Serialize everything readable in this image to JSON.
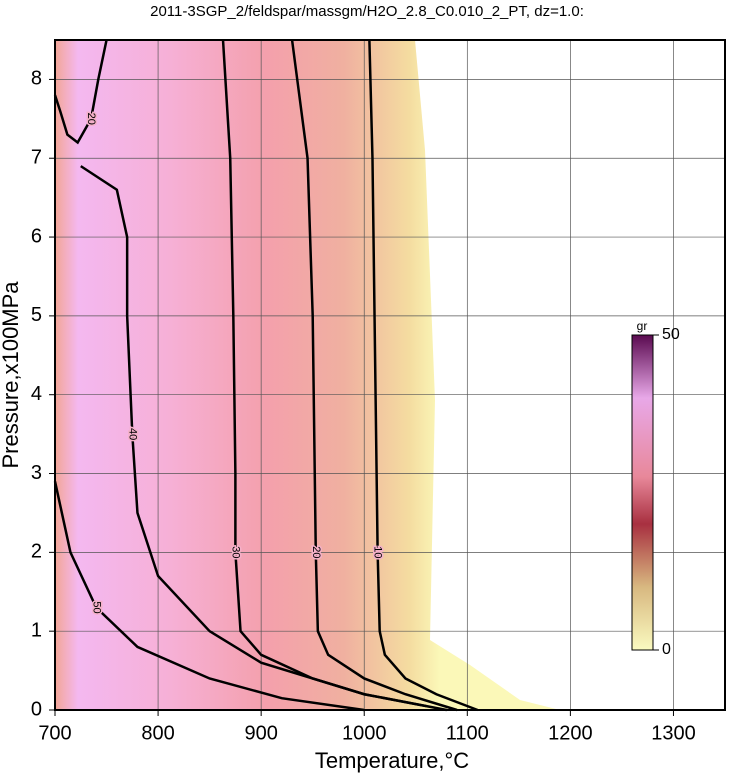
{
  "chart_data": {
    "type": "contour",
    "title": "2011-3SGP_2/feldspar/massgm/H2O_2.8_C0.010_2_PT, dz=1.0:",
    "x_label": "Temperature,°C",
    "y_label": "Pressure,x100MPa",
    "xlim": [
      700,
      1350
    ],
    "ylim": [
      0,
      8.5
    ],
    "xticks": [
      700,
      800,
      900,
      1000,
      1100,
      1200,
      1300
    ],
    "yticks": [
      0,
      1,
      2,
      3,
      4,
      5,
      6,
      7,
      8
    ],
    "grid": true,
    "contours": [
      {
        "level": 10,
        "x": [
          1005,
          1008,
          1010,
          1012,
          1013,
          1015,
          1020,
          1040,
          1070,
          1110
        ],
        "y": [
          8.5,
          7,
          5,
          3,
          2,
          1,
          0.7,
          0.4,
          0.2,
          0
        ]
      },
      {
        "level": 20,
        "x": [
          930,
          945,
          950,
          952,
          953,
          955,
          965,
          1000,
          1040,
          1090
        ],
        "y": [
          8.5,
          7,
          5,
          3,
          2,
          1,
          0.7,
          0.4,
          0.2,
          0
        ]
      },
      {
        "level": 30,
        "x": [
          863,
          870,
          873,
          875,
          875,
          880,
          900,
          950,
          1000,
          1060
        ],
        "y": [
          8.5,
          7,
          5,
          3,
          2,
          1,
          0.7,
          0.4,
          0.2,
          0.05
        ]
      },
      {
        "level": 40,
        "x": [
          725,
          760,
          770,
          770,
          775,
          780,
          800,
          850,
          900,
          1000,
          1080
        ],
        "y": [
          6.9,
          6.6,
          6,
          5,
          3.5,
          2.5,
          1.7,
          1,
          0.6,
          0.2,
          0
        ]
      },
      {
        "level": 50,
        "x": [
          700,
          715,
          740,
          780,
          850,
          920,
          1000
        ],
        "y": [
          2.9,
          2,
          1.3,
          0.8,
          0.4,
          0.15,
          0
        ]
      },
      {
        "level": 20,
        "x": [
          750,
          742,
          735,
          722,
          712,
          705,
          700
        ],
        "y": [
          8.5,
          8,
          7.5,
          7.2,
          7.3,
          7.6,
          7.8
        ]
      }
    ],
    "colorbar": {
      "label": "gr",
      "lim": [
        0,
        50
      ],
      "ticks": [
        0,
        50
      ]
    }
  }
}
